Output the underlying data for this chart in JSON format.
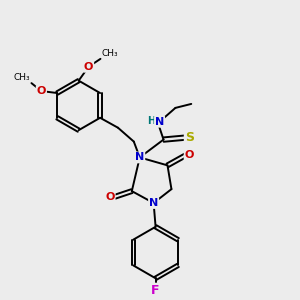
{
  "bg_color": "#ececec",
  "atom_colors": {
    "C": "#000000",
    "N": "#0000cc",
    "O": "#cc0000",
    "S": "#aaaa00",
    "F": "#cc00cc",
    "H": "#007777"
  },
  "bond_color": "#000000",
  "figsize": [
    3.0,
    3.0
  ],
  "dpi": 100
}
